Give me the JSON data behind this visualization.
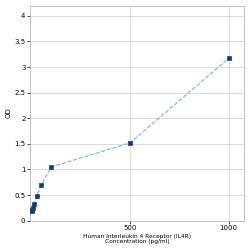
{
  "x_vals": [
    1.5625,
    3.125,
    6.25,
    12.5,
    25,
    50,
    100,
    500,
    1000
  ],
  "y_vals": [
    0.198,
    0.215,
    0.255,
    0.32,
    0.48,
    0.7,
    1.05,
    1.52,
    3.17
  ],
  "point_color": "#1a3a6b",
  "line_color": "#7ab3d9",
  "marker": "s",
  "markersize": 3.5,
  "linewidth": 0.8,
  "xlabel_line1": "Human Interleukin 4 Receptor (IL4R)",
  "xlabel_line2": "Concentration (pg/ml)",
  "x_mid_label": "500",
  "ylabel": "OD",
  "ylim": [
    0,
    4.2
  ],
  "yticks": [
    0,
    0.5,
    1.0,
    1.5,
    2.0,
    2.5,
    3.0,
    3.5,
    4.0
  ],
  "ytick_labels": [
    "0",
    "0.5",
    "1",
    "1.5",
    "2",
    "2.5",
    "3",
    "3.5",
    "4"
  ],
  "grid_color": "#CCCCCC",
  "bg_color": "#FFFFFF",
  "fig_bg": "#FFFFFF"
}
